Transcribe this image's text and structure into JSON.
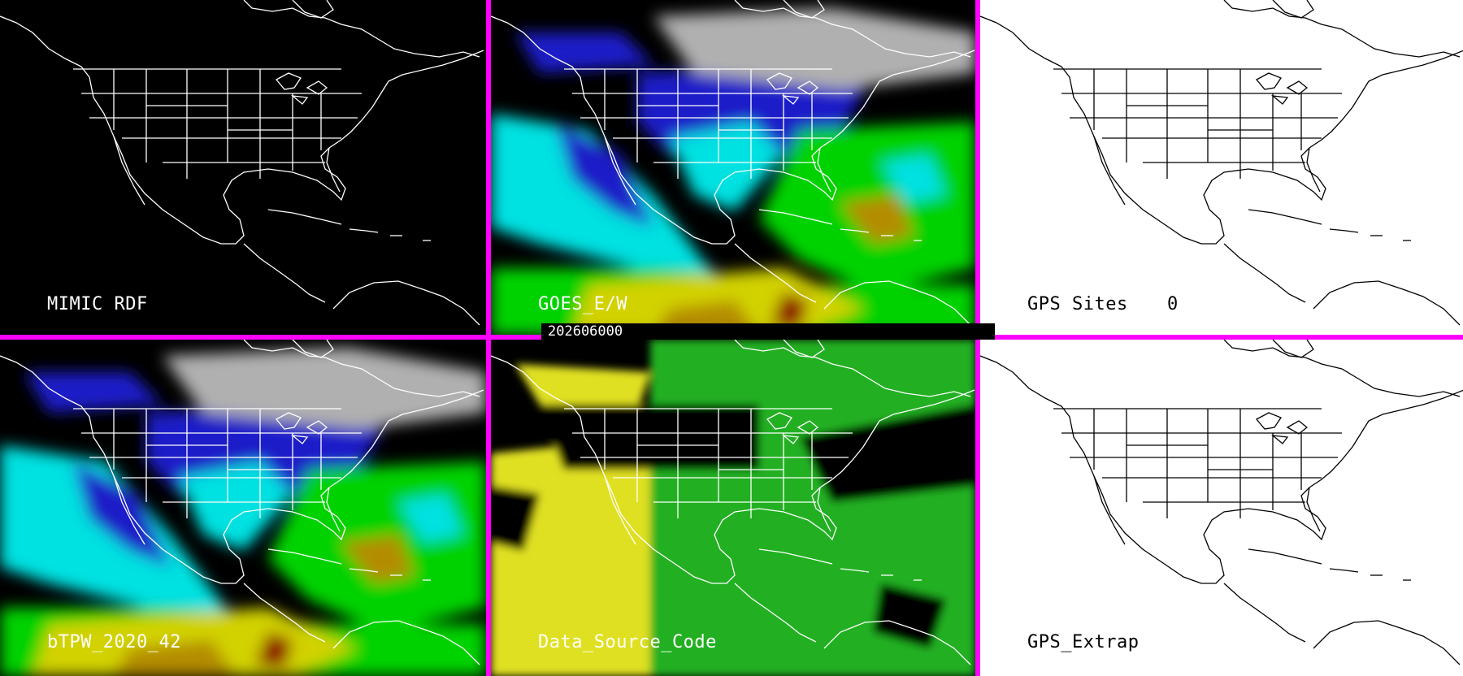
{
  "timestamp": "202606000",
  "panels": [
    {
      "id": "mimic",
      "label": "MIMIC RDF",
      "theme": "dark"
    },
    {
      "id": "goes",
      "label": "GOES_E/W",
      "theme": "dark"
    },
    {
      "id": "gps-sites",
      "label": "GPS Sites",
      "count": "0",
      "theme": "light"
    },
    {
      "id": "btpw",
      "label": "bTPW_2020_42",
      "theme": "dark"
    },
    {
      "id": "data-source",
      "label": "Data_Source_Code",
      "theme": "dark"
    },
    {
      "id": "gps-extrap",
      "label": "GPS_Extrap",
      "theme": "light"
    }
  ],
  "colors": {
    "divider": "#ff00ff",
    "map_lines_dark": "#ffffff",
    "map_lines_light": "#000000",
    "tpw_scale": [
      "#000000",
      "#808080",
      "#d8d8d8",
      "#00008c",
      "#1e1ec8",
      "#00e1e1",
      "#7fffff",
      "#00d200",
      "#5ab400",
      "#d2d200",
      "#b48c00",
      "#8c0000"
    ]
  }
}
